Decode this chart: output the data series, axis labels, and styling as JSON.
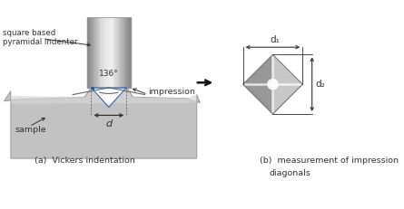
{
  "bg_color": "#ffffff",
  "fig_width": 4.45,
  "fig_height": 2.31,
  "dpi": 100,
  "label_squarebased": "square based\npyramidal indenter",
  "label_angle": "136°",
  "label_d": "d",
  "label_impression": "impression",
  "label_sample": "sample",
  "label_a": "(a)  Vickers indentation",
  "label_b_line1": "(b)  measurement of impression",
  "label_b_line2": "diagonals",
  "label_d1": "d₁",
  "label_d2": "d₂",
  "arrow_color": "#333333"
}
